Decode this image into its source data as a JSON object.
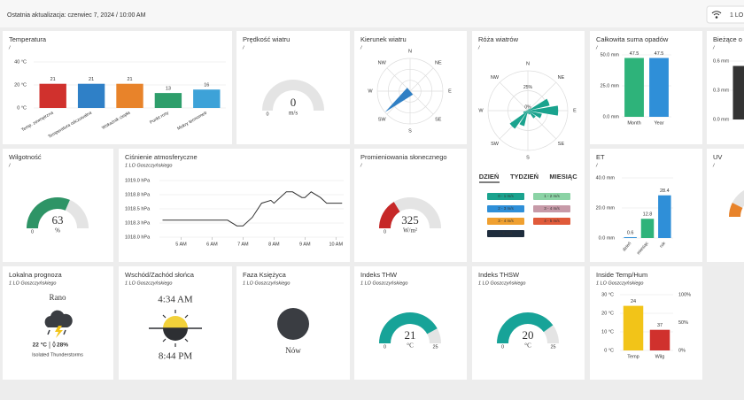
{
  "header": {
    "updated": "Ostatnia aktualizacja: czerwiec 7, 2024 / 10:00 AM",
    "station": "1 LO"
  },
  "cards": {
    "temperature": {
      "title": "Temperatura",
      "subtitle": "/",
      "type": "bar",
      "categories": [
        "Temp. zewnętrzna",
        "Temperatura odczuwalna",
        "Wskaźnik ciepła",
        "Punkt rosy",
        "Mokry termometr"
      ],
      "values": [
        21,
        21,
        21,
        13,
        16
      ],
      "colors": [
        "#d0312d",
        "#2f80c7",
        "#e8832a",
        "#2e9e6b",
        "#3da2d8"
      ],
      "ylim": [
        0,
        40
      ],
      "yticks": [
        {
          "value": 0,
          "label": "0 °C"
        },
        {
          "value": 20,
          "label": "20 °C"
        },
        {
          "value": 40,
          "label": "40 °C"
        }
      ]
    },
    "wind_speed": {
      "title": "Prędkość wiatru",
      "subtitle": "/",
      "type": "gauge",
      "value": 0,
      "unit": "m/s",
      "min": 0
    },
    "wind_direction": {
      "title": "Kierunek wiatru",
      "subtitle": "/",
      "type": "compass",
      "directions": [
        "N",
        "NE",
        "E",
        "SE",
        "S",
        "SW",
        "W",
        "NW"
      ],
      "value": 230,
      "color": "#2f7fc4"
    },
    "wind_rose": {
      "title": "Róża wiatrów",
      "subtitle": "/",
      "type": "polar",
      "directions": [
        "N",
        "NE",
        "E",
        "SE",
        "S",
        "SW",
        "W",
        "NW"
      ],
      "values": [
        0,
        2,
        3,
        28,
        38,
        18,
        12,
        5,
        4,
        20,
        28,
        6,
        2,
        1,
        1,
        1
      ],
      "color": "#1aa38e",
      "rlim": [
        0,
        50
      ],
      "rticks": [
        {
          "value": 0,
          "label": "0%"
        },
        {
          "value": 25,
          "label": "25%"
        }
      ],
      "tabs": [
        "DZIEŃ",
        "TYDZIEŃ",
        "MIESIĄC"
      ],
      "legend": [
        {
          "label": "0 - 1 m/s",
          "color": "#1aa38e"
        },
        {
          "label": "1 - 2 m/s",
          "color": "#8bd3a5"
        },
        {
          "label": "2 - 3 m/s",
          "color": "#2f8fd8"
        },
        {
          "label": "3 - 4 m/s",
          "color": "#c79aa8"
        },
        {
          "label": "3 - 4 m/s",
          "color": "#f0a030"
        },
        {
          "label": "4 - 5 m/s",
          "color": "#e05a3a"
        },
        {
          "label": "> 5 m/s",
          "color": "#1f2d3d"
        }
      ]
    },
    "rain": {
      "title": "Całkowita suma opadów",
      "subtitle": "/",
      "type": "bar",
      "categories": [
        "Month",
        "Year"
      ],
      "values": [
        47.5,
        47.5
      ],
      "colors": [
        "#2eb37a",
        "#2f8fd8"
      ],
      "ylim": [
        0,
        50
      ],
      "yticks": [
        {
          "value": 0,
          "label": "0.0 mm"
        },
        {
          "value": 25,
          "label": "25.0 mm"
        },
        {
          "value": 50,
          "label": "50.0 mm"
        }
      ]
    },
    "rain_now": {
      "title": "Bieżące o",
      "subtitle": "/",
      "type": "bar",
      "values": [
        0.55
      ],
      "colors": [
        "#333333"
      ],
      "ylim": [
        0,
        0.6
      ],
      "yticks": [
        {
          "value": 0,
          "label": "0.0 mm"
        },
        {
          "value": 0.3,
          "label": "0.3 mm"
        },
        {
          "value": 0.6,
          "label": "0.6 mm"
        }
      ]
    },
    "humidity": {
      "title": "Wilgotność",
      "subtitle": "/",
      "type": "gauge",
      "value": 63,
      "unit": "%",
      "min": 0,
      "max": 100,
      "color": "#2e9466"
    },
    "pressure": {
      "title": "Ciśnienie atmosferyczne",
      "subtitle": "1 LO Goszczyńskiego",
      "type": "line",
      "x": [
        4.4,
        5,
        5.5,
        6,
        6.5,
        6.8,
        7,
        7.3,
        7.6,
        7.9,
        8,
        8.4,
        8.6,
        8.9,
        9,
        9.2,
        9.5,
        9.7,
        10,
        10.2
      ],
      "values": [
        1018.3,
        1018.3,
        1018.3,
        1018.3,
        1018.3,
        1018.2,
        1018.2,
        1018.35,
        1018.6,
        1018.65,
        1018.6,
        1018.8,
        1018.8,
        1018.7,
        1018.7,
        1018.8,
        1018.7,
        1018.6,
        1018.6,
        1018.6
      ],
      "color": "#333333",
      "xlim": [
        4.3,
        10.25
      ],
      "xticks": [
        {
          "value": 5,
          "label": "5 AM"
        },
        {
          "value": 6,
          "label": "6 AM"
        },
        {
          "value": 7,
          "label": "7 AM"
        },
        {
          "value": 8,
          "label": "8 AM"
        },
        {
          "value": 9,
          "label": "9 AM"
        },
        {
          "value": 10,
          "label": "10 AM"
        }
      ],
      "ylim": [
        1018,
        1019
      ],
      "yticks": [
        {
          "value": 1018,
          "label": "1018.0 hPa"
        },
        {
          "value": 1018.25,
          "label": "1018.3 hPa"
        },
        {
          "value": 1018.5,
          "label": "1018.5 hPa"
        },
        {
          "value": 1018.75,
          "label": "1018.8 hPa"
        },
        {
          "value": 1019,
          "label": "1019.0 hPa"
        }
      ]
    },
    "radiation": {
      "title": "Promieniowania słonecznego",
      "subtitle": "/",
      "type": "gauge",
      "value": 325,
      "unit": "W/m²",
      "min": 0,
      "max": 1000,
      "color": "#c62828"
    },
    "et": {
      "title": "ET",
      "subtitle": "/",
      "type": "bar",
      "categories": [
        "dzień",
        "miesiąc",
        "rok"
      ],
      "values": [
        0.6,
        12.8,
        28.4
      ],
      "colors": [
        "#2f8fd8",
        "#2eb37a",
        "#2f8fd8"
      ],
      "ylim": [
        0,
        40
      ],
      "yticks": [
        {
          "value": 0,
          "label": "0.0 mm"
        },
        {
          "value": 20,
          "label": "20.0 mm"
        },
        {
          "value": 40,
          "label": "40.0 mm"
        }
      ]
    },
    "uv": {
      "title": "UV",
      "subtitle": "/"
    },
    "forecast": {
      "title": "Lokalna prognoza",
      "subtitle": "1 LO Goszczyńskiego",
      "period": "Rano",
      "temperature": "22 °C",
      "precipitation": "28%",
      "condition": "Isolated Thunderstorms"
    },
    "sun": {
      "title": "Wschód/Zachód słońca",
      "subtitle": "1 LO Goszczyńskiego",
      "sunrise": "4:34 AM",
      "sunset": "8:44 PM"
    },
    "moon": {
      "title": "Faza Księżyca",
      "subtitle": "1 LO Goszczyńskiego",
      "phase": "Nów"
    },
    "thw": {
      "title": "Indeks THW",
      "subtitle": "1 LO Goszczyńskiego",
      "type": "gauge",
      "value": 21,
      "unit": "°C",
      "min": 0,
      "max": 25,
      "color": "#17a398"
    },
    "thsw": {
      "title": "Indeks THSW",
      "subtitle": "1 LO Goszczyńskiego",
      "type": "gauge",
      "value": 20,
      "unit": "°C",
      "min": 0,
      "max": 25,
      "color": "#17a398"
    },
    "inside": {
      "title": "Inside Temp/Hum",
      "subtitle": "1 LO Goszczyńskiego",
      "type": "bar",
      "categories": [
        "Temp",
        "Wilg"
      ],
      "values": [
        24,
        37
      ],
      "axes": [
        "y",
        "y2"
      ],
      "colors": [
        "#f2c418",
        "#d0312d"
      ],
      "ylim": [
        0,
        30
      ],
      "yticks": [
        {
          "value": 0,
          "label": "0 °C"
        },
        {
          "value": 10,
          "label": "10 °C"
        },
        {
          "value": 20,
          "label": "20 °C"
        },
        {
          "value": 30,
          "label": "30 °C"
        }
      ],
      "y2lim": [
        0,
        100
      ],
      "y2ticks": [
        {
          "value": 0,
          "label": "0%"
        },
        {
          "value": 50,
          "label": "50%"
        },
        {
          "value": 100,
          "label": "100%"
        }
      ]
    }
  }
}
